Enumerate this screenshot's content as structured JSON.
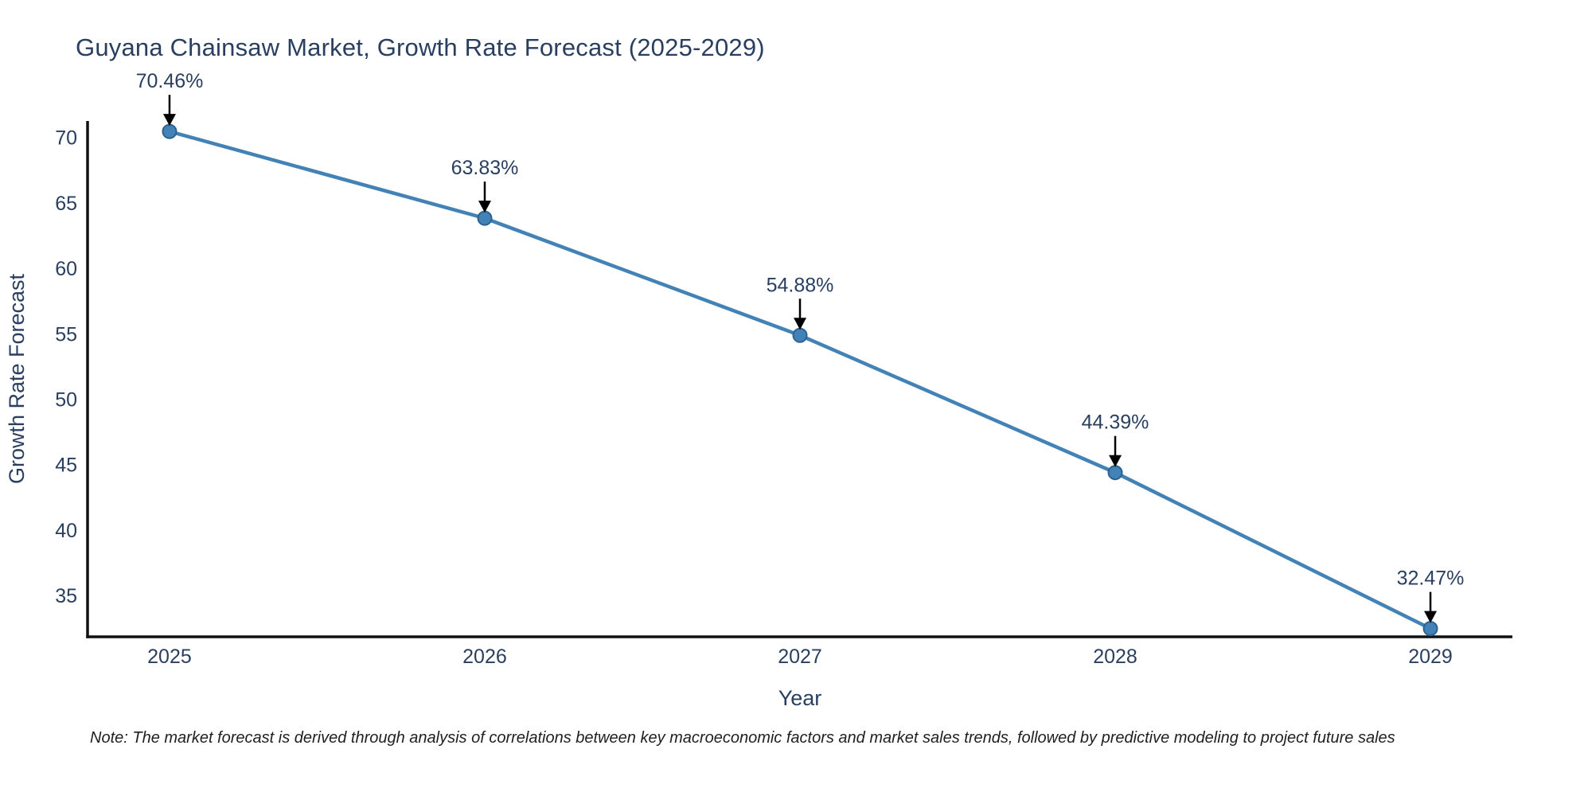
{
  "note": "Note: The market forecast is derived through analysis of correlations between key macroeconomic factors and market sales trends, followed by predictive modeling to project future sales",
  "chart_data": {
    "type": "line",
    "title": "Guyana Chainsaw Market, Growth Rate Forecast (2025-2029)",
    "x": [
      2025,
      2026,
      2027,
      2028,
      2029
    ],
    "values": [
      70.46,
      63.83,
      54.88,
      44.39,
      32.47
    ],
    "point_labels": [
      "70.46%",
      "63.83%",
      "54.88%",
      "44.39%",
      "32.47%"
    ],
    "xticks": [
      "2025",
      "2026",
      "2027",
      "2028",
      "2029"
    ],
    "yticks": [
      35,
      40,
      45,
      50,
      55,
      60,
      65,
      70
    ],
    "xlabel": "Year",
    "ylabel": "Growth Rate Forecast",
    "xlim": [
      2024.74,
      2029.26
    ],
    "ylim": [
      31.84,
      71.26
    ],
    "grid": false,
    "legend": "none",
    "line_color": "#4282b6",
    "marker_edge_color": "#2d6290",
    "arrow_color": "#000000",
    "axis_color": "#111111",
    "text_color": "#2a3f5f"
  }
}
